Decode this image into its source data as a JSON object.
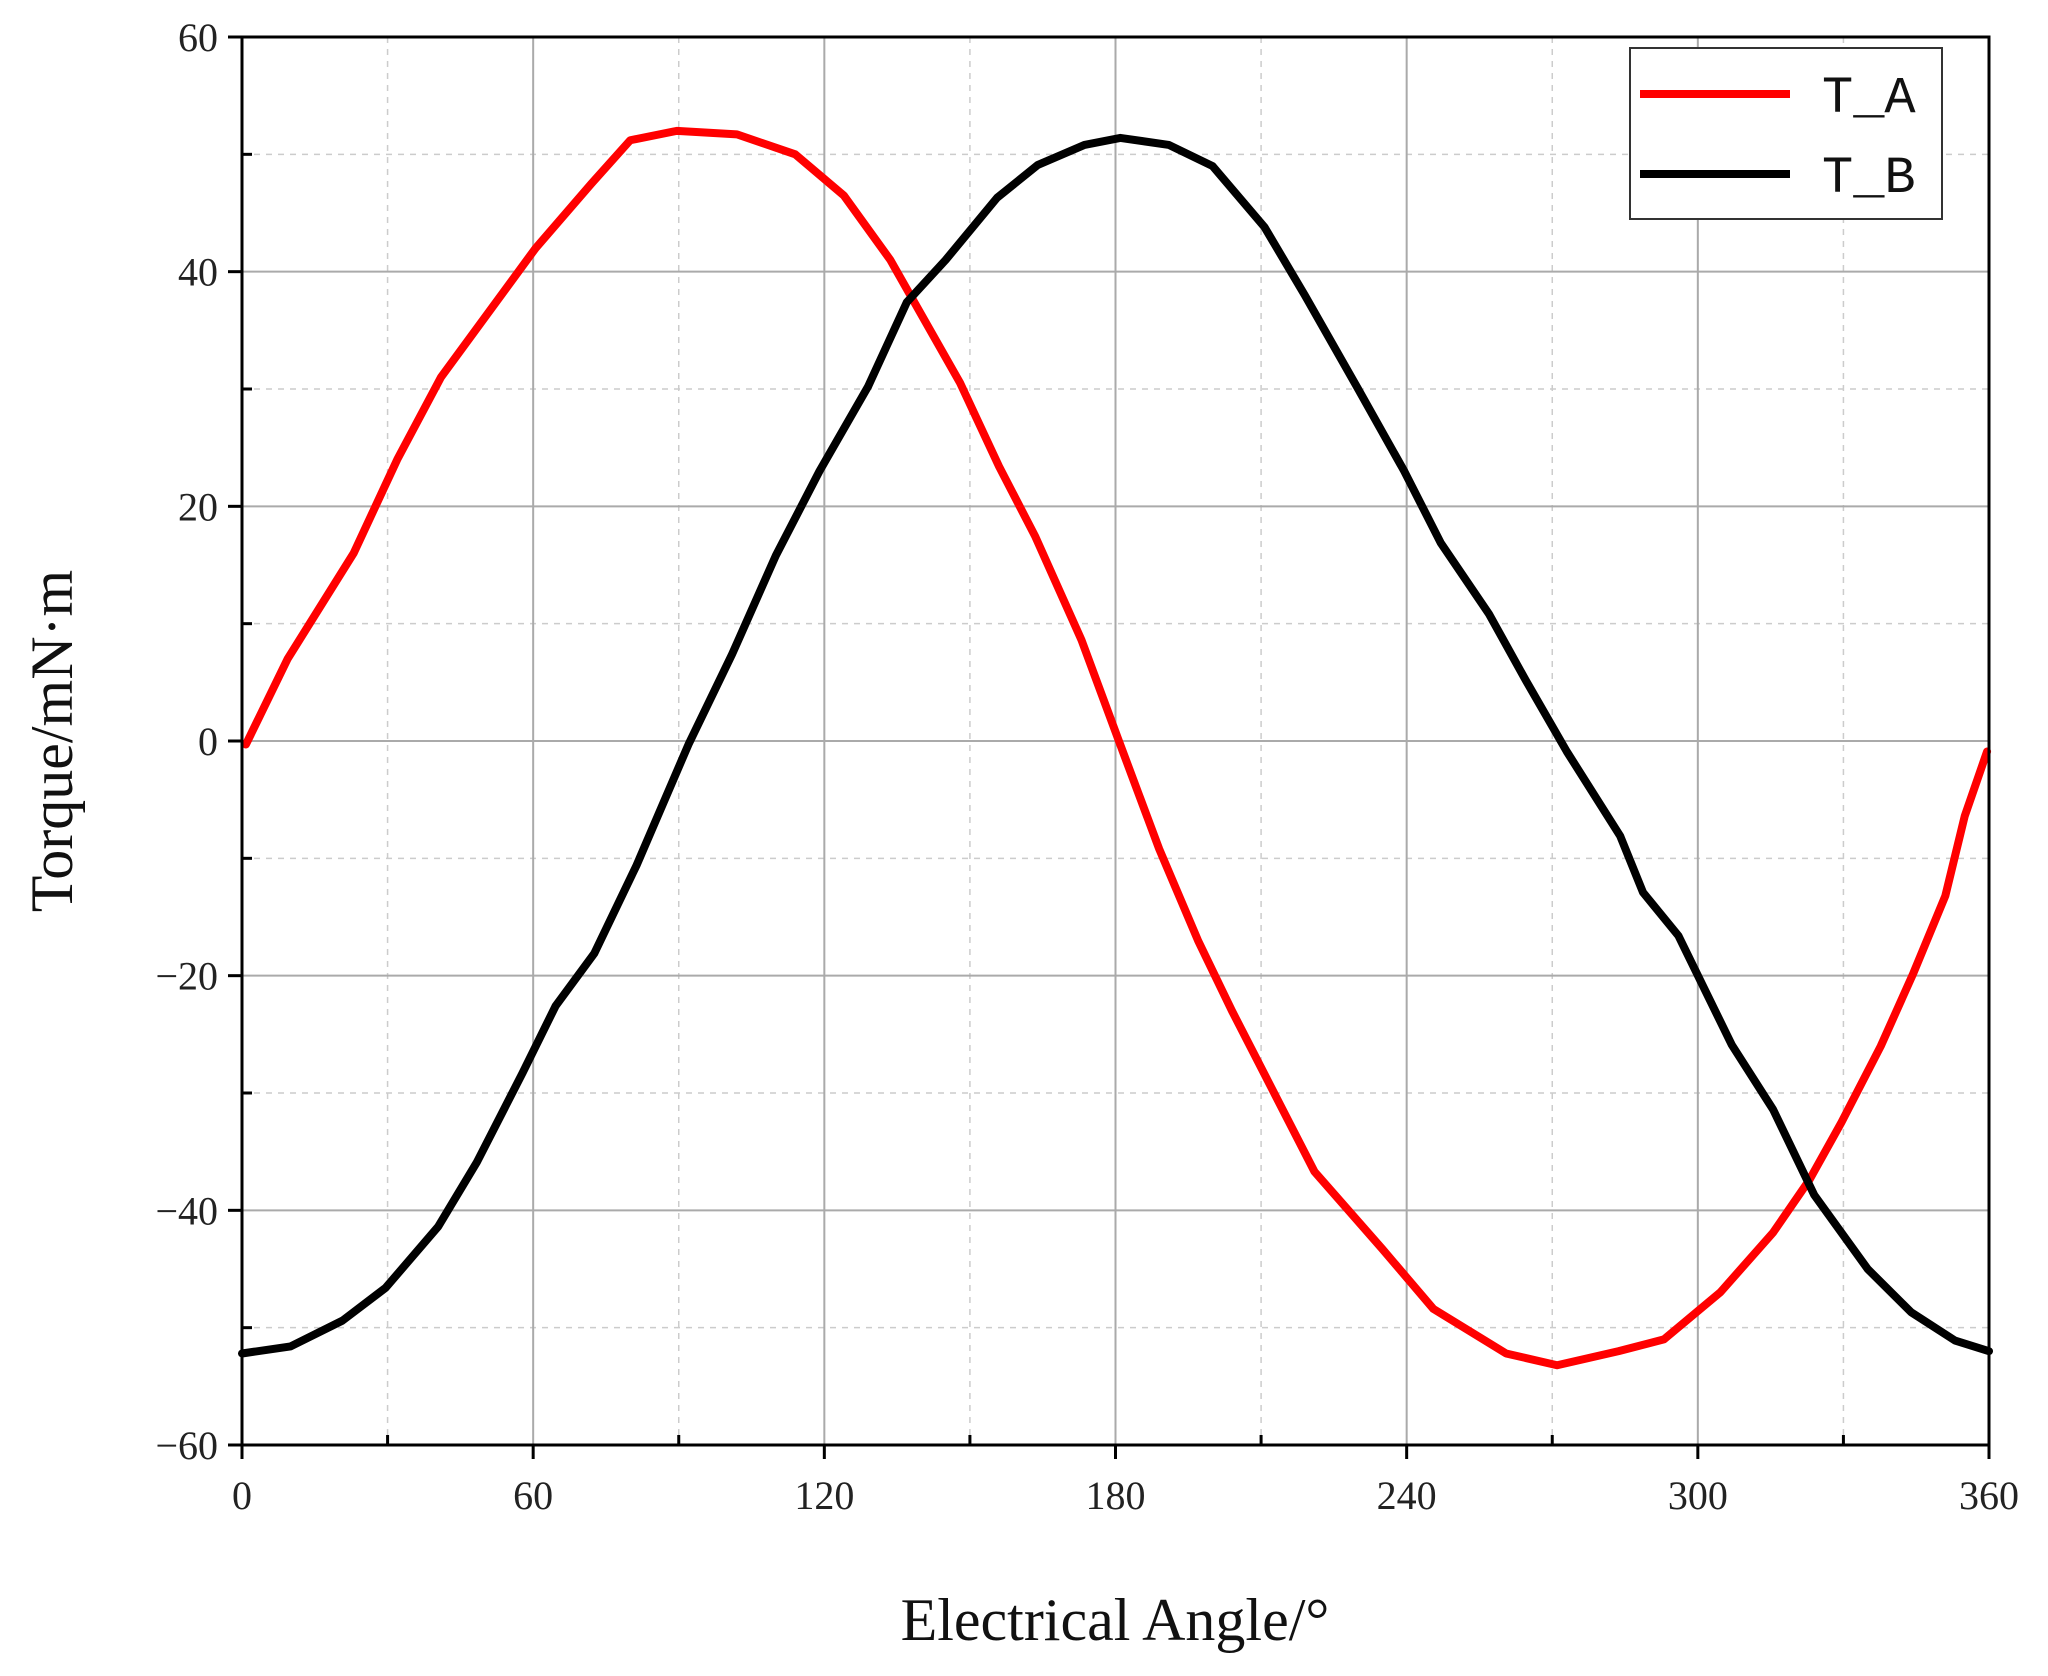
{
  "chart_data": {
    "type": "line",
    "title": "",
    "xlabel": "Electrical Angle/°",
    "ylabel": "Torque/mN·m",
    "xlim": [
      0,
      360
    ],
    "ylim": [
      -60,
      60
    ],
    "xticks": [
      0,
      60,
      120,
      180,
      240,
      300,
      360
    ],
    "yticks": [
      -60,
      -40,
      -20,
      0,
      20,
      40,
      60
    ],
    "xtick_labels": [
      "0",
      "60",
      "120",
      "180",
      "240",
      "300",
      "360"
    ],
    "ytick_labels": [
      "−60",
      "−40",
      "−20",
      "0",
      "20",
      "40",
      "60"
    ],
    "grid": true,
    "legend_position": "top-right",
    "series": [
      {
        "name": "T_A",
        "color": "#ff0000",
        "points": [
          [
            0.8,
            -0.3
          ],
          [
            9.4,
            7
          ],
          [
            23,
            16
          ],
          [
            32,
            24
          ],
          [
            41,
            31
          ],
          [
            60.5,
            42
          ],
          [
            72,
            47.5
          ],
          [
            80,
            51.2
          ],
          [
            89.6,
            52
          ],
          [
            102,
            51.7
          ],
          [
            114,
            50
          ],
          [
            124,
            46.5
          ],
          [
            133.6,
            41
          ],
          [
            148,
            30.5
          ],
          [
            156,
            23.4
          ],
          [
            163.5,
            17.4
          ],
          [
            173,
            8.6
          ],
          [
            180.7,
            0
          ],
          [
            189,
            -9.2
          ],
          [
            197,
            -17
          ],
          [
            204,
            -23
          ],
          [
            221,
            -36.7
          ],
          [
            235,
            -43.3
          ],
          [
            245.5,
            -48.4
          ],
          [
            260.5,
            -52.2
          ],
          [
            271,
            -53.2
          ],
          [
            283.7,
            -52
          ],
          [
            293,
            -51
          ],
          [
            304.6,
            -47
          ],
          [
            315.5,
            -41.9
          ],
          [
            323,
            -37.4
          ],
          [
            329.6,
            -32.5
          ],
          [
            337.7,
            -26
          ],
          [
            344.4,
            -19.8
          ],
          [
            351,
            -13.2
          ],
          [
            355,
            -6.4
          ],
          [
            359.6,
            -0.9
          ]
        ]
      },
      {
        "name": "T_B",
        "color": "#000000",
        "points": [
          [
            0,
            -52.2
          ],
          [
            10,
            -51.6
          ],
          [
            20.7,
            -49.4
          ],
          [
            29.6,
            -46.6
          ],
          [
            40.4,
            -41.4
          ],
          [
            48.4,
            -35.9
          ],
          [
            57.8,
            -28.3
          ],
          [
            64.6,
            -22.6
          ],
          [
            72.6,
            -18.1
          ],
          [
            81.3,
            -10.6
          ],
          [
            92,
            -0.3
          ],
          [
            101,
            7.4
          ],
          [
            110,
            15.8
          ],
          [
            119,
            23
          ],
          [
            129,
            30.2
          ],
          [
            137,
            37.4
          ],
          [
            145,
            41
          ],
          [
            155.6,
            46.3
          ],
          [
            164,
            49.1
          ],
          [
            173.6,
            50.8
          ],
          [
            181,
            51.4
          ],
          [
            191,
            50.8
          ],
          [
            200,
            49
          ],
          [
            210.7,
            43.8
          ],
          [
            219,
            38
          ],
          [
            230,
            30
          ],
          [
            239.5,
            23
          ],
          [
            247,
            16.9
          ],
          [
            257,
            10.8
          ],
          [
            264.5,
            5.2
          ],
          [
            273,
            -0.9
          ],
          [
            284,
            -8.1
          ],
          [
            288.7,
            -12.9
          ],
          [
            296,
            -16.6
          ],
          [
            307,
            -25.9
          ],
          [
            315.5,
            -31.4
          ],
          [
            324,
            -38.7
          ],
          [
            335,
            -45
          ],
          [
            344,
            -48.7
          ],
          [
            353,
            -51.1
          ],
          [
            360,
            -52
          ]
        ]
      }
    ]
  }
}
